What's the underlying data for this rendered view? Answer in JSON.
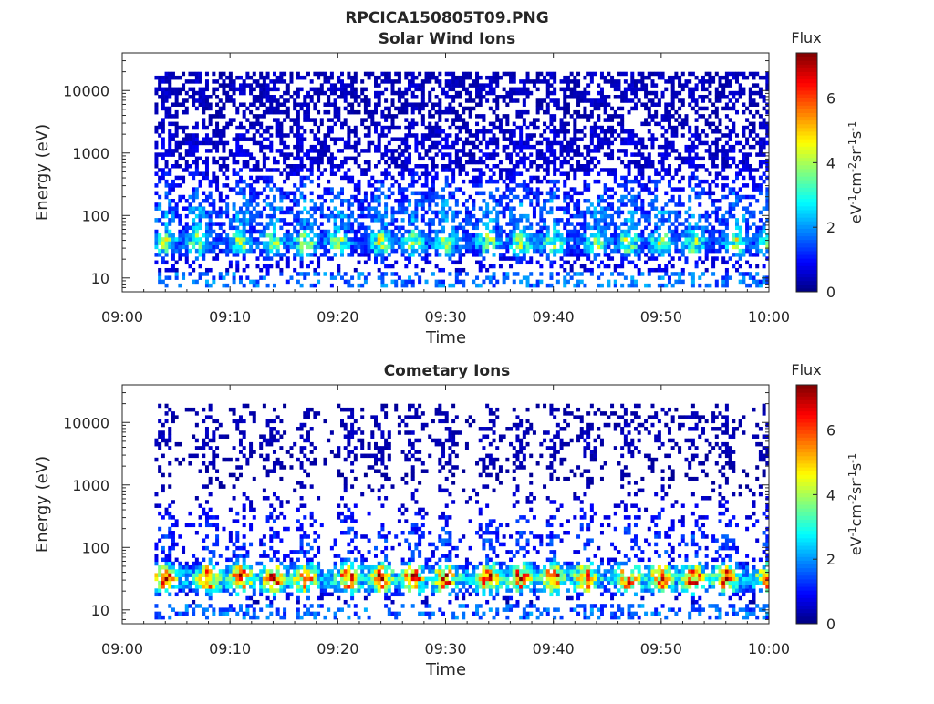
{
  "figure": {
    "title": "RPCICA150805T09.PNG"
  },
  "chart_data": [
    {
      "type": "heatmap",
      "title": "Solar Wind Ions",
      "xlabel": "Time",
      "ylabel": "Energy (eV)",
      "x_ticks": [
        "09:00",
        "09:10",
        "09:20",
        "09:30",
        "09:40",
        "09:50",
        "10:00"
      ],
      "xlim": [
        "09:00",
        "10:00"
      ],
      "y_scale": "log",
      "y_ticks": [
        10,
        100,
        1000,
        10000
      ],
      "y_tick_labels": [
        "10",
        "100",
        "1000",
        "10000"
      ],
      "ylim": [
        6,
        40000
      ],
      "colorbar": {
        "title": "Flux",
        "label": "eV-1cm-2sr-1s-1",
        "range": [
          0,
          7.4
        ],
        "ticks": [
          0,
          2,
          4,
          6
        ],
        "colormap": "jet"
      },
      "data_start": "09:03",
      "data_end": "10:00",
      "band_centers": [
        {
          "energy_eV": 35,
          "flux": 4.2
        },
        {
          "energy_eV": 80,
          "flux": 2.2
        },
        {
          "energy_eV": 1000,
          "flux": 0.8
        },
        {
          "energy_eV": 10000,
          "flux": 0.6
        }
      ],
      "pulse_times": [
        "09:04",
        "09:07",
        "09:11",
        "09:14",
        "09:17",
        "09:20",
        "09:24",
        "09:27",
        "09:30",
        "09:34",
        "09:37",
        "09:40",
        "09:44",
        "09:47",
        "09:50",
        "09:53",
        "09:57",
        "10:00"
      ]
    },
    {
      "type": "heatmap",
      "title": "Cometary Ions",
      "xlabel": "Time",
      "ylabel": "Energy (eV)",
      "x_ticks": [
        "09:00",
        "09:10",
        "09:20",
        "09:30",
        "09:40",
        "09:50",
        "10:00"
      ],
      "xlim": [
        "09:00",
        "10:00"
      ],
      "y_scale": "log",
      "y_ticks": [
        10,
        100,
        1000,
        10000
      ],
      "y_tick_labels": [
        "10",
        "100",
        "1000",
        "10000"
      ],
      "ylim": [
        6,
        40000
      ],
      "colorbar": {
        "title": "Flux",
        "label": "eV-1cm-2sr-1s-1",
        "range": [
          0,
          7.4
        ],
        "ticks": [
          0,
          2,
          4,
          6
        ],
        "colormap": "jet"
      },
      "data_start": "09:03",
      "data_end": "10:00",
      "band_centers": [
        {
          "energy_eV": 30,
          "flux": 6.8
        },
        {
          "energy_eV": 100,
          "flux": 1.5
        },
        {
          "energy_eV": 5000,
          "flux": 0.5
        }
      ],
      "pulse_times": [
        "09:04",
        "09:08",
        "09:11",
        "09:14",
        "09:17",
        "09:21",
        "09:24",
        "09:27",
        "09:30",
        "09:34",
        "09:37",
        "09:40",
        "09:43",
        "09:47",
        "09:50",
        "09:53",
        "09:56",
        "10:00"
      ]
    }
  ],
  "tick_label_pieces": {
    "flux_unit_eV": "eV",
    "flux_unit_cm": "cm",
    "flux_unit_sr": "sr",
    "flux_unit_s": "s",
    "exp_minus1": "-1",
    "exp_minus2": "-2"
  }
}
